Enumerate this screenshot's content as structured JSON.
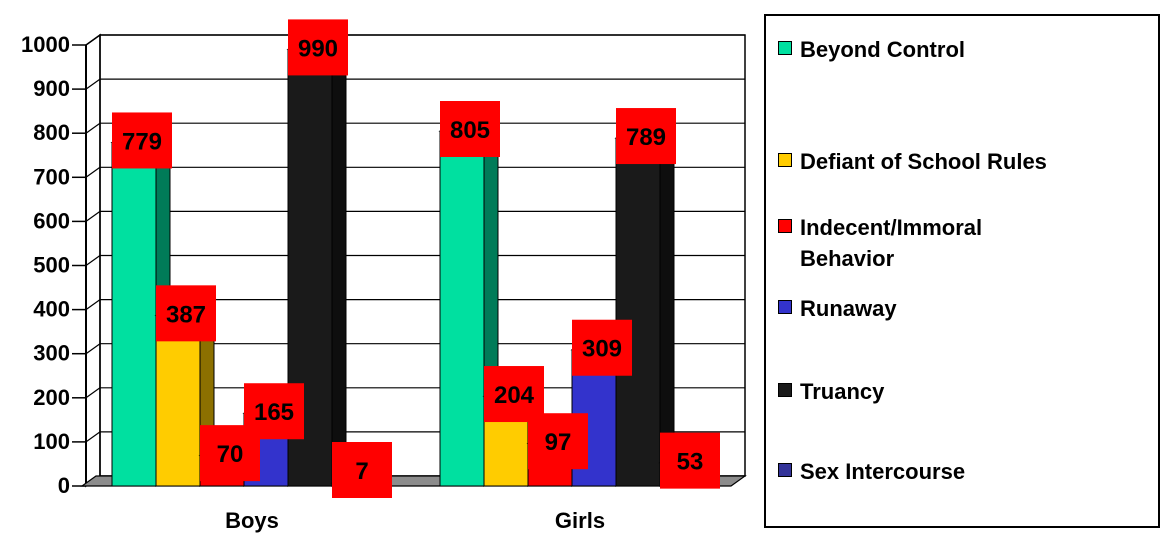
{
  "chart_data": {
    "type": "bar",
    "categories": [
      "Boys",
      "Girls"
    ],
    "series": [
      {
        "name": "Beyond Control",
        "color": "#00E0A0",
        "values": [
          779,
          805
        ]
      },
      {
        "name": "Defiant of School Rules",
        "color": "#FFCC00",
        "values": [
          387,
          204
        ]
      },
      {
        "name": "Indecent/Immoral Behavior",
        "color": "#FF0000",
        "values": [
          70,
          97
        ]
      },
      {
        "name": "Runaway",
        "color": "#3333CC",
        "values": [
          165,
          309
        ]
      },
      {
        "name": "Truancy",
        "color": "#1A1A1A",
        "values": [
          990,
          789
        ]
      },
      {
        "name": "Sex Intercourse",
        "color": "#333399",
        "values": [
          7,
          53
        ]
      }
    ],
    "ylim": [
      0,
      1000
    ],
    "yticks": [
      0,
      100,
      200,
      300,
      400,
      500,
      600,
      700,
      800,
      900,
      1000
    ],
    "grid": true,
    "data_label_color": "#FF0000",
    "legend_position": "right"
  }
}
